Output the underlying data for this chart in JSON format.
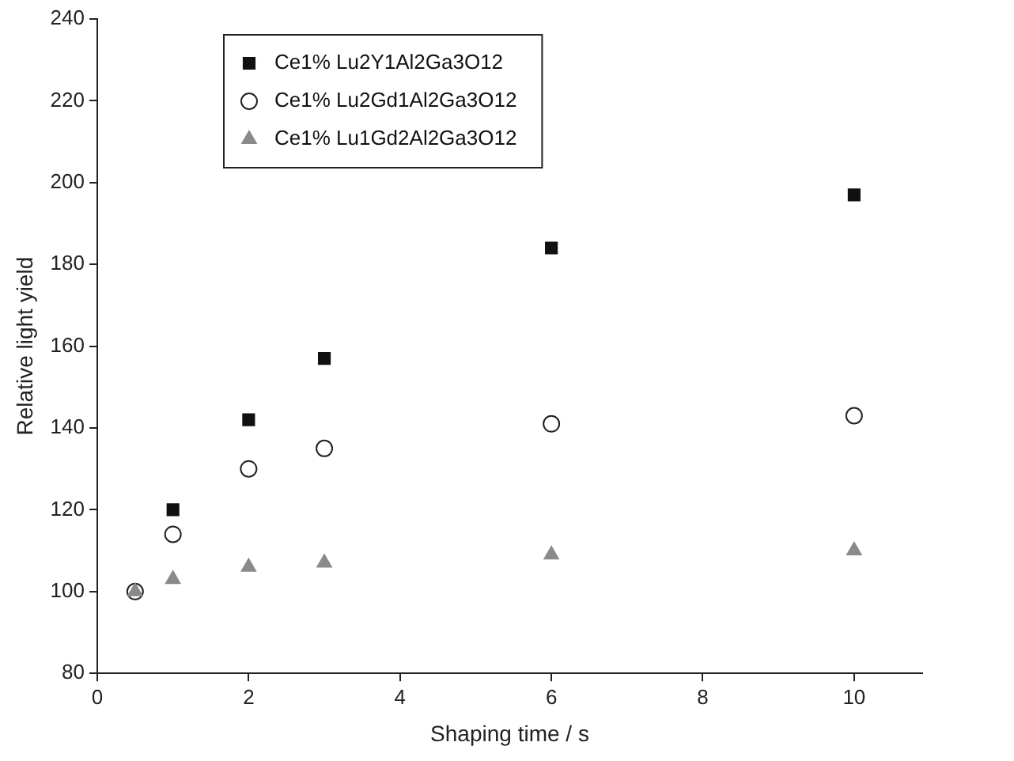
{
  "chart_data": {
    "type": "scatter",
    "xlabel": "Shaping time / s",
    "ylabel": "Relative light yield",
    "xlim": [
      0,
      10.9
    ],
    "xticks": [
      0,
      2,
      4,
      6,
      8,
      10
    ],
    "ylim": [
      80,
      240
    ],
    "yticks": [
      80,
      100,
      120,
      140,
      160,
      180,
      200,
      220,
      240
    ],
    "x": [
      0.5,
      1,
      2,
      3,
      6,
      10
    ],
    "legend": "top left",
    "grid": false,
    "series": [
      {
        "name": "Ce1% Lu2Y1Al2Ga3O12",
        "color": "#111111",
        "marker": "square",
        "values": [
          null,
          120,
          142,
          157,
          184,
          197
        ]
      },
      {
        "name": "Ce1% Lu2Gd1Al2Ga3O12",
        "color": "#222222",
        "marker": "circle",
        "values": [
          100,
          114,
          130,
          135,
          141,
          143
        ]
      },
      {
        "name": "Ce1% Lu1Gd2Al2Ga3O12",
        "color": "#8a8a8a",
        "marker": "triangle",
        "values": [
          100,
          103,
          106,
          107,
          109,
          110
        ]
      }
    ]
  }
}
